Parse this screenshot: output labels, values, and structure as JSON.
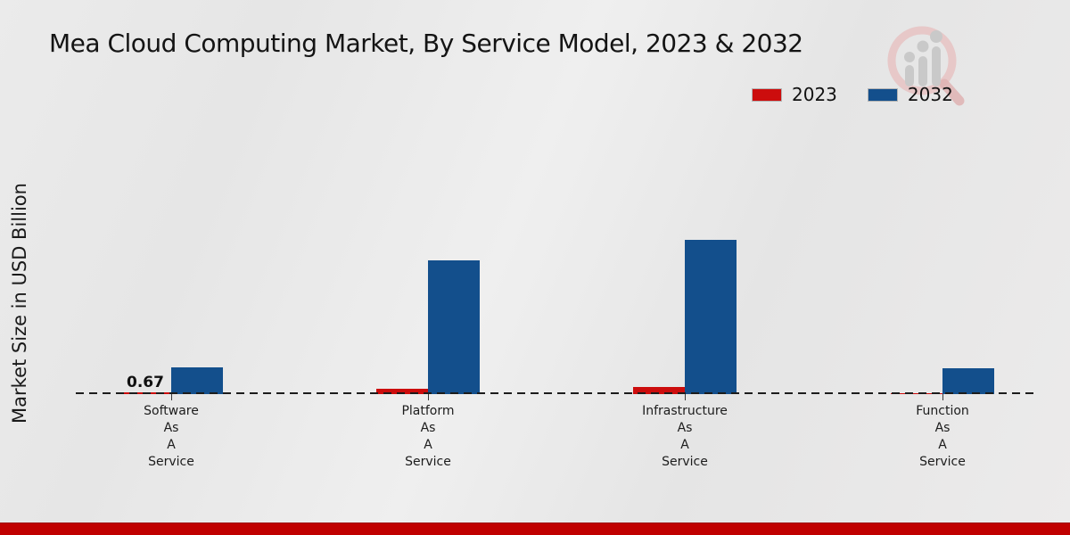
{
  "title": "Mea Cloud Computing Market, By Service Model, 2023 & 2032",
  "y_axis_label": "Market Size in USD Billion",
  "legend": [
    {
      "label": "2023",
      "color": "#cc0d0d"
    },
    {
      "label": "2032",
      "color": "#134f8c"
    }
  ],
  "colors": {
    "accent_red": "#cc0d0d",
    "accent_blue": "#134f8c",
    "footer_strip": "#c00000",
    "baseline": "#1c1c1c"
  },
  "watermark": {
    "icon": "magnifier-bar-chart-logo"
  },
  "chart_data": {
    "type": "bar",
    "title": "Mea Cloud Computing Market, By Service Model, 2023 & 2032",
    "ylabel": "Market Size in USD Billion",
    "unit": "USD Billion",
    "legend_position": "top-right",
    "baseline_style": "dashed",
    "grid": false,
    "categories": [
      "Software As A Service",
      "Platform As A Service",
      "Infrastructure As A Service",
      "Function As A Service"
    ],
    "category_lines": [
      [
        "Software",
        "As",
        "A",
        "Service"
      ],
      [
        "Platform",
        "As",
        "A",
        "Service"
      ],
      [
        "Infrastructure",
        "As",
        "A",
        "Service"
      ],
      [
        "Function",
        "As",
        "A",
        "Service"
      ]
    ],
    "series": [
      {
        "name": "2023",
        "color": "#cc0d0d",
        "values": [
          0.67,
          2.4,
          3.2,
          0.4
        ]
      },
      {
        "name": "2032",
        "color": "#134f8c",
        "values": [
          11.5,
          57.5,
          66.5,
          11.2
        ]
      }
    ],
    "data_labels": [
      {
        "series": "2023",
        "category_index": 0,
        "text": "0.67"
      }
    ]
  }
}
